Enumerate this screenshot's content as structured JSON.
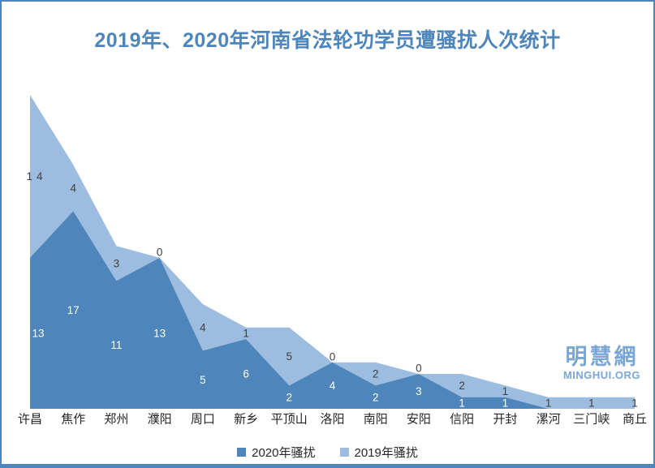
{
  "title": "2019年、2020年河南省法轮功学员遭骚扰人次统计",
  "watermark": {
    "cn": "明慧網",
    "en": "MINGHUI.ORG"
  },
  "colors": {
    "series_2020": "#4e86bb",
    "series_2019": "#9cbce0",
    "frame": "#4e86bb",
    "title_text": "#4e86bb",
    "value_label_on_dark": "#ffffff",
    "value_label_on_light": "#404040",
    "axis_text": "#262626",
    "watermark_text": "#7aa6d6"
  },
  "chart_data": {
    "type": "area",
    "stacked": true,
    "title": "2019年、2020年河南省法轮功学员遭骚扰人次统计",
    "categories": [
      "许昌",
      "焦作",
      "郑州",
      "濮阳",
      "周口",
      "新乡",
      "平顶山",
      "洛阳",
      "南阳",
      "安阳",
      "信阳",
      "开封",
      "漯河",
      "三门峡",
      "商丘"
    ],
    "series": [
      {
        "name": "2020年骚扰",
        "color": "#4e86bb",
        "values": [
          13,
          17,
          11,
          13,
          5,
          6,
          2,
          4,
          2,
          3,
          1,
          1,
          0,
          0,
          0
        ]
      },
      {
        "name": "2019年骚扰",
        "color": "#9cbce0",
        "values": [
          14,
          4,
          3,
          0,
          4,
          1,
          5,
          0,
          2,
          0,
          2,
          1,
          1,
          1,
          1
        ]
      }
    ],
    "totals": [
      27,
      21,
      14,
      13,
      9,
      7,
      7,
      4,
      4,
      3,
      3,
      2,
      1,
      1,
      1
    ],
    "xlabel": "",
    "ylabel": "",
    "ylim": [
      0,
      27
    ],
    "grid": false,
    "data_labels": true,
    "legend_position": "bottom"
  }
}
